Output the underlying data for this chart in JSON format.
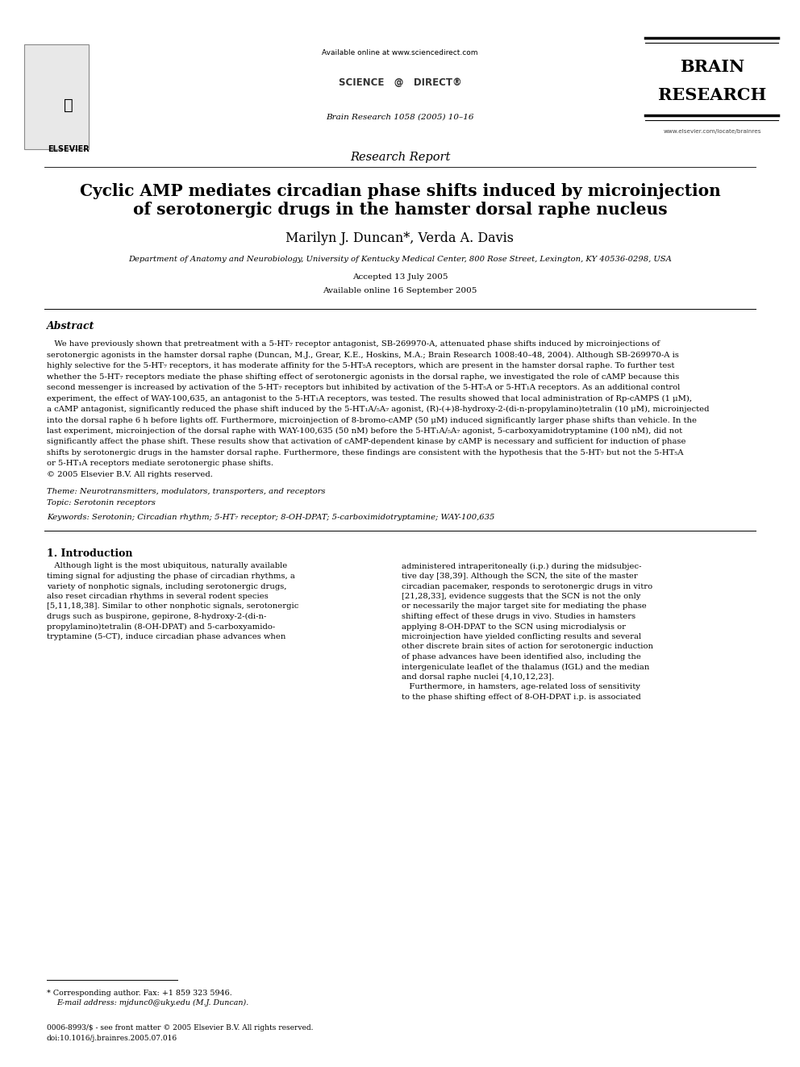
{
  "bg_color": "#ffffff",
  "page_width": 9.92,
  "page_height": 13.23,
  "header": {
    "available_online": "Available online at www.sciencedirect.com",
    "journal_line": "Brain Research 1058 (2005) 10–16",
    "section": "Research Report",
    "brain_research_line1": "BRAIN",
    "brain_research_line2": "RESEARCH",
    "www_line": "www.elsevier.com/locate/brainres"
  },
  "title": "Cyclic AMP mediates circadian phase shifts induced by microinjection\nof serotonergic drugs in the hamster dorsal raphe nucleus",
  "authors": "Marilyn J. Duncan*, Verda A. Davis",
  "affiliation": "Department of Anatomy and Neurobiology, University of Kentucky Medical Center, 800 Rose Street, Lexington, KY 40536-0298, USA",
  "dates": "Accepted 13 July 2005\nAvailable online 16 September 2005",
  "abstract_title": "Abstract",
  "abstract_text": "We have previously shown that pretreatment with a 5-HT₇ receptor antagonist, SB-269970-A, attenuated phase shifts induced by microinjections of serotonergic agonists in the hamster dorsal raphe (Duncan, M.J., Grear, K.E., Hoskins, M.A.; Brain Research 1008:40–48, 2004). Although SB-269970-A is highly selective for the 5-HT₇ receptors, it has moderate affinity for the 5-HT₅₁ receptors, which are present in the hamster dorsal raphe. To further test whether the 5-HT₇ receptors mediate the phase shifting effect of serotonergic agonists in the dorsal raphe, we investigated the role of cAMP because this second messenger is increased by activation of the 5-HT₇ receptors but inhibited by activation of the 5-HT₅₁ or 5-HT₁₁ receptors. As an additional control experiment, the effect of WAY-100,635, an antagonist to the 5-HT₁₁ receptors, was tested. The results showed that local administration of Rp-cAMPS (1 μM), a cAMP antagonist, significantly reduced the phase shift induced by the 5-HT₁₁/₅₇ agonist, (R)-(+)8-hydroxy-2-(di-n-propylamino)tetralin (10 μM), microinjected into the dorsal raphe 6 h before lights off. Furthermore, microinjection of 8-bromo-cAMP (50 μM) induced significantly larger phase shifts than vehicle. In the last experiment, microinjection of the dorsal raphe with WAY-100,635 (50 nM) before the 5-HT₁₁/₅₇ agonist, 5-carboxyamidotryptamine (100 nM), did not significantly affect the phase shift. These results show that activation of cAMP-dependent kinase by cAMP is necessary and sufficient for induction of phase shifts by serotonergic drugs in the hamster dorsal raphe. Furthermore, these findings are consistent with the hypothesis that the 5-HT₇ but not the 5-HT₅₁ or 5-HT₁₁ receptors mediate serotonergic phase shifts.\n© 2005 Elsevier B.V. All rights reserved.",
  "theme_line": "Theme: Neurotransmitters, modulators, transporters, and receptors",
  "topic_line": "Topic: Serotonin receptors",
  "keywords_line": "Keywords: Serotonin; Circadian rhythm; 5-HT₇ receptor; 8-OH-DPAT; 5-carboximidotryptamine; WAY-100,635",
  "intro_title": "1. Introduction",
  "intro_col1": "Although light is the most ubiquitous, naturally available timing signal for adjusting the phase of circadian rhythms, a variety of nonphotic signals, including serotonergic drugs, also reset circadian rhythms in several rodent species [5,11,18,38]. Similar to other nonphotic signals, serotonergic drugs such as buspirone, gepirone, 8-hydroxy-2-(di-n-propylamino)tetralin (8-OH-DPAT) and 5-carboxyamidotryptamine (5-CT), induce circadian phase advances when",
  "intro_col2": "administered intraperitoneally (i.p.) during the midsubjective day [38,39]. Although the SCN, the site of the master circadian pacemaker, responds to serotonergic drugs in vitro [21,28,33], evidence suggests that the SCN is not the only or necessarily the major target site for mediating the phase shifting effect of these drugs in vivo. Studies in hamsters applying 8-OH-DPAT to the SCN using microdialysis or microinjection have yielded conflicting results and several other discrete brain sites of action for serotonergic induction of phase advances have been identified also, including the intergeniculate leaflet of the thalamus (IGL) and the median and dorsal raphe nuclei [4,10,12,23].\n    Furthermore, in hamsters, age-related loss of sensitivity to the phase shifting effect of 8-OH-DPAT i.p. is associated",
  "footnote_line1": "* Corresponding author. Fax: +1 859 323 5946.",
  "footnote_line2": "E-mail address: mjdunc0@uky.edu (M.J. Duncan).",
  "footer_line1": "0006-8993/$ - see front matter © 2005 Elsevier B.V. All rights reserved.",
  "footer_line2": "doi:10.1016/j.brainres.2005.07.016",
  "elsevier_text": "ELSEVIER",
  "sciencedirect_text": "SCIENCE    DIRECT®"
}
